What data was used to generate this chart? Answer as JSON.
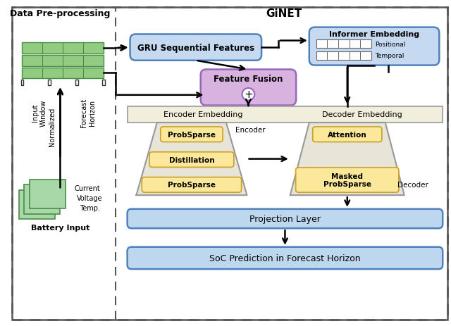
{
  "title_left": "Data Pre-processing",
  "title_right": "GiNET",
  "bg_color": "#ffffff",
  "gru_box": {
    "label": "GRU Sequential Features",
    "color": "#c5d9f1",
    "border": "#4f81bd"
  },
  "informer_box": {
    "label": "Informer Embedding",
    "color": "#c5d9f1",
    "border": "#4f81bd"
  },
  "feature_fusion_box": {
    "label": "Feature Fusion",
    "color": "#d9b3e0",
    "border": "#9966bb"
  },
  "enc_embed_label": "Encoder Embedding",
  "dec_embed_label": "Decoder Embedding",
  "enc_embed_color": "#f2eedc",
  "enc_embed_border": "#aaaaaa",
  "projection_box": {
    "label": "Projection Layer",
    "color": "#bdd7ee",
    "border": "#4f81bd"
  },
  "soc_box": {
    "label": "SoC Prediction in Forecast Horizon",
    "color": "#bdd7ee",
    "border": "#4f81bd"
  },
  "trap_color": "#e8e4d8",
  "trap_border": "#999999",
  "probsparse_color": "#fce89a",
  "probsparse_border": "#c9a227",
  "encoder_label": "Encoder",
  "decoder_label": "Decoder",
  "battery_label": "Battery Input",
  "input_window_label": "Input\nWindow",
  "forecast_horizon_label": "Forecast\nHorizon",
  "normalized_label": "Normalized",
  "current_label": "Current",
  "voltage_label": "Voltage",
  "temp_label": "Temp.",
  "temporal_label": "Temporal",
  "positional_label": "Positional",
  "attention_label": "Attention",
  "masked_label": "Masked\nProbSparse",
  "distillation_label": "Distillation",
  "probsparse_label": "ProbSparse",
  "green_dark": "#5faa5f",
  "green_mid": "#82c882",
  "green_light": "#a8d8a8",
  "green_fill": "#92cc80",
  "green_border": "#4a8c4a"
}
